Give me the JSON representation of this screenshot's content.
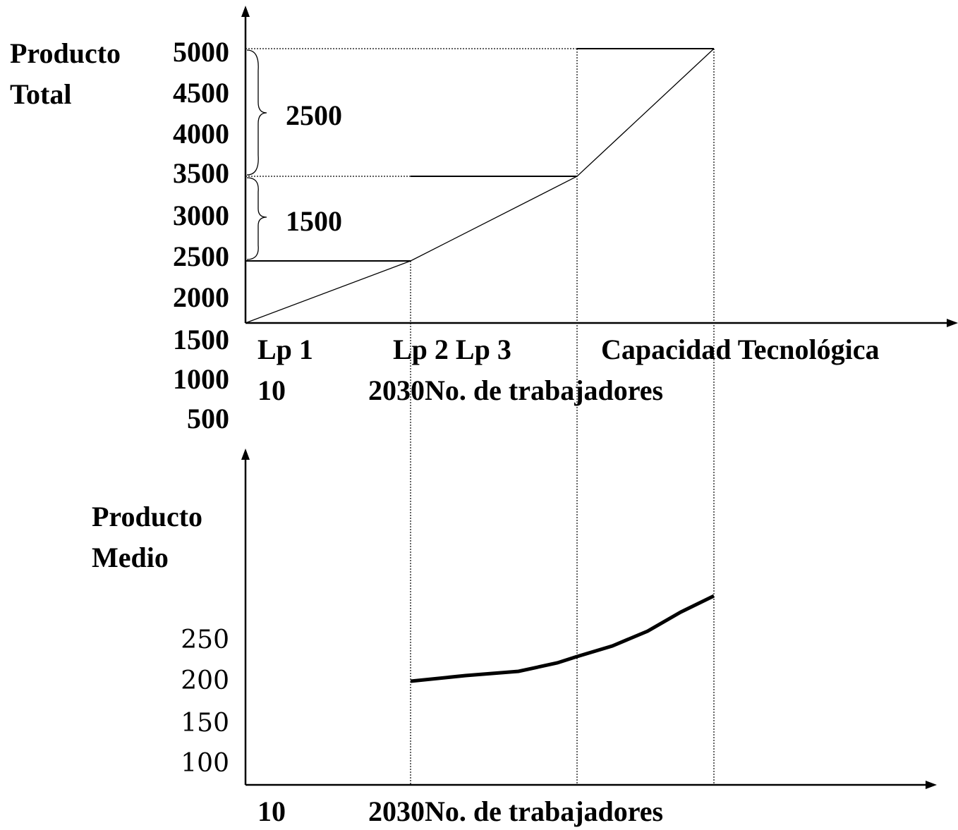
{
  "top_chart": {
    "y_label": [
      "Producto",
      "Total"
    ],
    "y_ticks": [
      "5000",
      "4500",
      "4000",
      "3500",
      "3000",
      "2500",
      "2000",
      "1500",
      "1000",
      "500"
    ],
    "brace_labels": [
      "2500",
      "1500"
    ],
    "x_labels_row1": [
      "Lp 1",
      "Lp 2 Lp 3",
      "Capacidad Tecnológica"
    ],
    "x_labels_row2": [
      "10",
      "2030No. de trabajadores"
    ]
  },
  "bottom_chart": {
    "y_label": [
      "Producto",
      "Medio"
    ],
    "y_ticks": [
      "250",
      "200",
      "150",
      "100"
    ],
    "x_labels": [
      "10",
      "2030No. de trabajadores"
    ]
  }
}
